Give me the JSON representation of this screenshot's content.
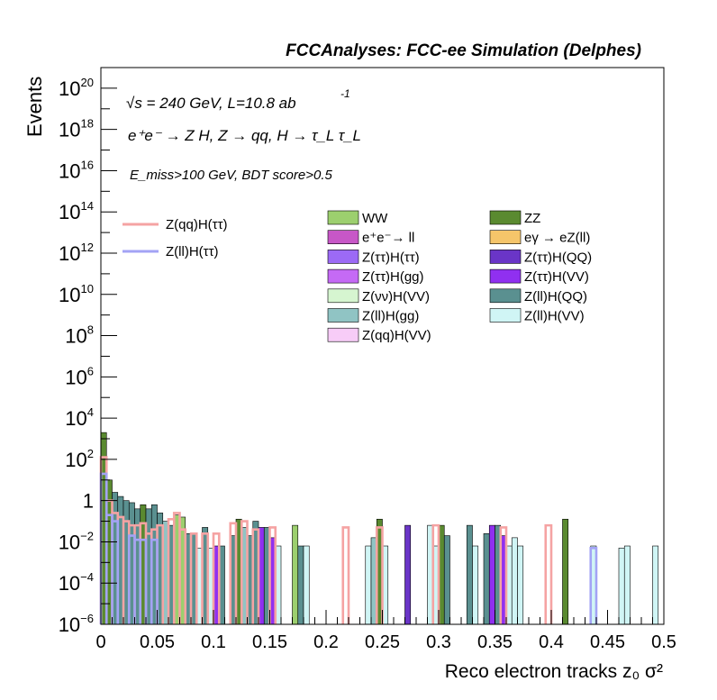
{
  "header": {
    "title": "FCCAnalyses: FCC-ee Simulation (Delphes)"
  },
  "annotations": {
    "energy": "√s = 240 GeV, L=10.8 ab",
    "energy_exp": "-1",
    "process": "e⁺e⁻ → Z H, Z → qq, H → τ_L τ_L",
    "cuts": "E_miss>100 GeV, BDT score>0.5"
  },
  "chart_data": {
    "type": "bar",
    "title": "FCCAnalyses: FCC-ee Simulation (Delphes)",
    "xlabel": "Reco electron tracks z₀ σ²",
    "ylabel": "Events",
    "xlim": [
      0,
      0.5
    ],
    "ylim_exp": [
      -6,
      21
    ],
    "log_y": true,
    "grid": false,
    "legend_placement": "top-middle",
    "x_ticks": [
      "0",
      "0.05",
      "0.1",
      "0.15",
      "0.2",
      "0.25",
      "0.3",
      "0.35",
      "0.4",
      "0.45",
      "0.5"
    ],
    "x_tick_values": [
      0,
      0.05,
      0.1,
      0.15,
      0.2,
      0.25,
      0.3,
      0.35,
      0.4,
      0.45,
      0.5
    ],
    "y_ticks": [
      {
        "exp": -6,
        "label": "10",
        "sup": "−6"
      },
      {
        "exp": -4,
        "label": "10",
        "sup": "−4"
      },
      {
        "exp": -2,
        "label": "10",
        "sup": "−2"
      },
      {
        "exp": 0,
        "label": "1",
        "sup": ""
      },
      {
        "exp": 2,
        "label": "10",
        "sup": "2"
      },
      {
        "exp": 4,
        "label": "10",
        "sup": "4"
      },
      {
        "exp": 6,
        "label": "10",
        "sup": "6"
      },
      {
        "exp": 8,
        "label": "10",
        "sup": "8"
      },
      {
        "exp": 10,
        "label": "10",
        "sup": "10"
      },
      {
        "exp": 12,
        "label": "10",
        "sup": "12"
      },
      {
        "exp": 14,
        "label": "10",
        "sup": "14"
      },
      {
        "exp": 16,
        "label": "10",
        "sup": "16"
      },
      {
        "exp": 18,
        "label": "10",
        "sup": "18"
      },
      {
        "exp": 20,
        "label": "10",
        "sup": "20"
      }
    ],
    "signal_legend": [
      {
        "name": "Z(qq)H(ττ)",
        "color": "#f5a3a3"
      },
      {
        "name": "Z(ll)H(ττ)",
        "color": "#a3a3f5"
      }
    ],
    "background_legend": [
      {
        "name": "WW",
        "color": "#9ccf6e"
      },
      {
        "name": "ZZ",
        "color": "#5a8a30"
      },
      {
        "name": "e⁺e⁻→ ll",
        "color": "#c757c7"
      },
      {
        "name": "eγ → eZ(ll)",
        "color": "#f5c56a"
      },
      {
        "name": "Z(ττ)H(ττ)",
        "color": "#9c6af5"
      },
      {
        "name": "Z(ττ)H(QQ)",
        "color": "#6a35c7"
      },
      {
        "name": "Z(ττ)H(gg)",
        "color": "#c56af5"
      },
      {
        "name": "Z(ττ)H(VV)",
        "color": "#9030f0"
      },
      {
        "name": "Z(νν)H(VV)",
        "color": "#d6f5d0"
      },
      {
        "name": "Z(ll)H(QQ)",
        "color": "#5a9090"
      },
      {
        "name": "Z(ll)H(gg)",
        "color": "#90c4c4"
      },
      {
        "name": "Z(ll)H(VV)",
        "color": "#d0f5f5"
      },
      {
        "name": "Z(qq)H(VV)",
        "color": "#f7ccf7"
      }
    ],
    "bin_width": 0.005,
    "stack_bins": [
      {
        "x": 0.0,
        "logy": 3.3,
        "color": "#5a8a30"
      },
      {
        "x": 0.005,
        "logy": 1.0,
        "color": "#5a8a30"
      },
      {
        "x": 0.01,
        "logy": 0.4,
        "color": "#5a9090"
      },
      {
        "x": 0.015,
        "logy": 0.2,
        "color": "#5a9090"
      },
      {
        "x": 0.02,
        "logy": 0.0,
        "color": "#5a9090"
      },
      {
        "x": 0.025,
        "logy": -0.1,
        "color": "#5a9090"
      },
      {
        "x": 0.03,
        "logy": -0.4,
        "color": "#5a9090"
      },
      {
        "x": 0.035,
        "logy": -0.2,
        "color": "#5a8a30"
      },
      {
        "x": 0.04,
        "logy": -0.4,
        "color": "#5a9090"
      },
      {
        "x": 0.045,
        "logy": -0.2,
        "color": "#5a9090"
      },
      {
        "x": 0.05,
        "logy": -0.6,
        "color": "#5a9090"
      },
      {
        "x": 0.055,
        "logy": -1.0,
        "color": "#90c4c4"
      },
      {
        "x": 0.06,
        "logy": -1.2,
        "color": "#5a9090"
      },
      {
        "x": 0.065,
        "logy": -0.7,
        "color": "#9ccf6e"
      },
      {
        "x": 0.07,
        "logy": -0.8,
        "color": "#9ccf6e"
      },
      {
        "x": 0.075,
        "logy": -1.6,
        "color": "#5a9090"
      },
      {
        "x": 0.08,
        "logy": -1.6,
        "color": "#5a9090"
      },
      {
        "x": 0.085,
        "logy": -2.3,
        "color": "#d0f5f5"
      },
      {
        "x": 0.09,
        "logy": -1.3,
        "color": "#5a9090"
      },
      {
        "x": 0.095,
        "logy": -2.3,
        "color": "#d0f5f5"
      },
      {
        "x": 0.1,
        "logy": -2.2,
        "color": "#9030f0"
      },
      {
        "x": 0.105,
        "logy": -2.2,
        "color": "#5a9090"
      },
      {
        "x": 0.115,
        "logy": -1.7,
        "color": "#5a9090"
      },
      {
        "x": 0.12,
        "logy": -0.9,
        "color": "#5a8a30"
      },
      {
        "x": 0.125,
        "logy": -1.3,
        "color": "#90c4c4"
      },
      {
        "x": 0.13,
        "logy": -1.7,
        "color": "#5a9090"
      },
      {
        "x": 0.135,
        "logy": -1.0,
        "color": "#5a9090"
      },
      {
        "x": 0.14,
        "logy": -1.3,
        "color": "#9030f0"
      },
      {
        "x": 0.145,
        "logy": -1.3,
        "color": "#5a9090"
      },
      {
        "x": 0.15,
        "logy": -1.8,
        "color": "#9030f0"
      },
      {
        "x": 0.155,
        "logy": -2.2,
        "color": "#d0f5f5"
      },
      {
        "x": 0.17,
        "logy": -1.2,
        "color": "#9ccf6e"
      },
      {
        "x": 0.175,
        "logy": -2.2,
        "color": "#5a9090"
      },
      {
        "x": 0.18,
        "logy": -2.2,
        "color": "#d0f5f5"
      },
      {
        "x": 0.235,
        "logy": -2.2,
        "color": "#d0f5f5"
      },
      {
        "x": 0.24,
        "logy": -1.8,
        "color": "#90c4c4"
      },
      {
        "x": 0.245,
        "logy": -0.9,
        "color": "#5a8a30"
      },
      {
        "x": 0.25,
        "logy": -2.2,
        "color": "#d0f5f5"
      },
      {
        "x": 0.27,
        "logy": -1.2,
        "color": "#6a35c7"
      },
      {
        "x": 0.29,
        "logy": -1.2,
        "color": "#d0f5f5"
      },
      {
        "x": 0.295,
        "logy": -2.2,
        "color": "#d0f5f5"
      },
      {
        "x": 0.3,
        "logy": -1.2,
        "color": "#5a8a30"
      },
      {
        "x": 0.305,
        "logy": -1.7,
        "color": "#5a9090"
      },
      {
        "x": 0.325,
        "logy": -1.2,
        "color": "#5a9090"
      },
      {
        "x": 0.33,
        "logy": -2.2,
        "color": "#d0f5f5"
      },
      {
        "x": 0.34,
        "logy": -1.6,
        "color": "#5a9090"
      },
      {
        "x": 0.345,
        "logy": -1.2,
        "color": "#9030f0"
      },
      {
        "x": 0.35,
        "logy": -1.2,
        "color": "#5a9090"
      },
      {
        "x": 0.355,
        "logy": -1.7,
        "color": "#9030f0"
      },
      {
        "x": 0.36,
        "logy": -2.2,
        "color": "#d0f5f5"
      },
      {
        "x": 0.365,
        "logy": -1.8,
        "color": "#d0f5f5"
      },
      {
        "x": 0.37,
        "logy": -2.2,
        "color": "#d0f5f5"
      },
      {
        "x": 0.41,
        "logy": -0.9,
        "color": "#5a8a30"
      },
      {
        "x": 0.435,
        "logy": -2.2,
        "color": "#d0f5f5"
      },
      {
        "x": 0.46,
        "logy": -2.3,
        "color": "#d0f5f5"
      },
      {
        "x": 0.465,
        "logy": -2.2,
        "color": "#d0f5f5"
      },
      {
        "x": 0.49,
        "logy": -2.2,
        "color": "#d0f5f5"
      }
    ],
    "signal_series": [
      {
        "name": "Z(qq)H(ττ)",
        "color": "#f5a3a3",
        "bins": [
          [
            0.0,
            2.1
          ],
          [
            0.005,
            0.0
          ],
          [
            0.01,
            -0.6
          ],
          [
            0.015,
            -0.8
          ],
          [
            0.02,
            -1.0
          ],
          [
            0.025,
            -1.2
          ],
          [
            0.03,
            -1.2
          ],
          [
            0.035,
            -1.1
          ],
          [
            0.04,
            -1.6
          ],
          [
            0.045,
            -1.4
          ],
          [
            0.05,
            -1.2
          ],
          [
            0.06,
            -0.9
          ],
          [
            0.065,
            -0.6
          ],
          [
            0.07,
            -1.4
          ],
          [
            0.08,
            -1.6
          ],
          [
            0.09,
            -1.6
          ],
          [
            0.1,
            -1.6
          ],
          [
            0.115,
            -1.1
          ],
          [
            0.125,
            -1.0
          ],
          [
            0.135,
            -1.4
          ],
          [
            0.15,
            -1.3
          ],
          [
            0.215,
            -1.3
          ],
          [
            0.245,
            -1.3
          ],
          [
            0.295,
            -1.2
          ],
          [
            0.355,
            -1.3
          ],
          [
            0.395,
            -1.2
          ]
        ]
      },
      {
        "name": "Z(ll)H(ττ)",
        "color": "#a3a3f5",
        "bins": [
          [
            0.0,
            1.3
          ],
          [
            0.005,
            -0.7
          ],
          [
            0.01,
            -1.0
          ],
          [
            0.025,
            -1.7
          ],
          [
            0.03,
            -1.9
          ],
          [
            0.035,
            -1.9
          ],
          [
            0.045,
            -1.9
          ],
          [
            0.435,
            -2.3
          ]
        ]
      }
    ]
  }
}
